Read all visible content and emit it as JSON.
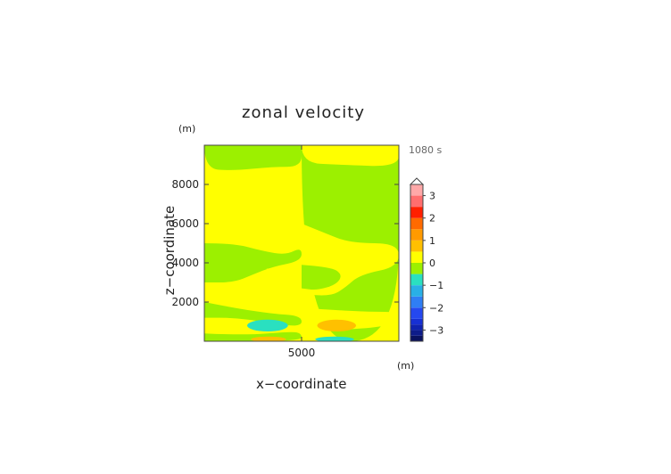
{
  "chart_data": {
    "type": "heatmap",
    "title": "zonal velocity",
    "xlabel": "x−coordinate",
    "ylabel": "z−coordinate",
    "x_unit": "(m)",
    "z_unit": "(m)",
    "time_label": "1080 s",
    "xlim": [
      0,
      10000
    ],
    "ylim": [
      0,
      10000
    ],
    "x_ticks": [
      {
        "value": 5000,
        "label": "5000"
      }
    ],
    "y_ticks": [
      {
        "value": 2000,
        "label": "2000"
      },
      {
        "value": 4000,
        "label": "4000"
      },
      {
        "value": 6000,
        "label": "6000"
      },
      {
        "value": 8000,
        "label": "8000"
      }
    ],
    "colorbar": {
      "levels": [
        {
          "lo": -3.5,
          "hi": -3.25,
          "color": "#0a1260"
        },
        {
          "lo": -3.25,
          "hi": -3.0,
          "color": "#0e1c8a"
        },
        {
          "lo": -3.0,
          "hi": -2.75,
          "color": "#1023b0"
        },
        {
          "lo": -2.75,
          "hi": -2.5,
          "color": "#1730d4"
        },
        {
          "lo": -2.5,
          "hi": -2.0,
          "color": "#2548f0"
        },
        {
          "lo": -2.0,
          "hi": -1.5,
          "color": "#2f7ef4"
        },
        {
          "lo": -1.5,
          "hi": -1.0,
          "color": "#29b0e6"
        },
        {
          "lo": -1.0,
          "hi": -0.5,
          "color": "#2ae0c0"
        },
        {
          "lo": -0.5,
          "hi": 0.0,
          "color": "#9cf000"
        },
        {
          "lo": 0.0,
          "hi": 0.5,
          "color": "#ffff00"
        },
        {
          "lo": 0.5,
          "hi": 1.0,
          "color": "#ffc000"
        },
        {
          "lo": 1.0,
          "hi": 1.5,
          "color": "#ff9a00"
        },
        {
          "lo": 1.5,
          "hi": 2.0,
          "color": "#ff6a00"
        },
        {
          "lo": 2.0,
          "hi": 2.5,
          "color": "#ff2000"
        },
        {
          "lo": 2.5,
          "hi": 3.0,
          "color": "#ff6e6e"
        },
        {
          "lo": 3.0,
          "hi": 3.5,
          "color": "#ffa8a8"
        }
      ],
      "tick_labels": [
        {
          "value": -3,
          "label": "−3"
        },
        {
          "value": -2,
          "label": "−2"
        },
        {
          "value": -1,
          "label": "−1"
        },
        {
          "value": 0,
          "label": "0"
        },
        {
          "value": 1,
          "label": "1"
        },
        {
          "value": 2,
          "label": "2"
        },
        {
          "value": 3,
          "label": "3"
        }
      ]
    },
    "colors": {
      "negative_small": "#9cf000",
      "positive_small": "#ffff00",
      "negative_moderate": "#2ae0c0",
      "positive_moderate": "#ffc000"
    },
    "regions": [
      {
        "sign": "positive",
        "level": 0.25,
        "x": [
          0,
          10000
        ],
        "z": [
          0,
          10000
        ]
      },
      {
        "sign": "negative",
        "level": -0.25,
        "x": [
          0,
          5000
        ],
        "z": [
          8700,
          10000
        ]
      },
      {
        "sign": "negative",
        "level": -0.25,
        "x": [
          5000,
          10000
        ],
        "z": [
          0,
          8900
        ]
      },
      {
        "sign": "negative",
        "level": -0.75,
        "x": [
          2200,
          4300
        ],
        "z": [
          500,
          1100
        ]
      },
      {
        "sign": "positive",
        "level": 0.75,
        "x": [
          5800,
          7800
        ],
        "z": [
          500,
          1100
        ]
      },
      {
        "sign": "positive",
        "level": 0.75,
        "x": [
          2400,
          4200
        ],
        "z": [
          0,
          200
        ]
      },
      {
        "sign": "negative",
        "level": -0.75,
        "x": [
          5700,
          7700
        ],
        "z": [
          0,
          200
        ]
      }
    ]
  }
}
